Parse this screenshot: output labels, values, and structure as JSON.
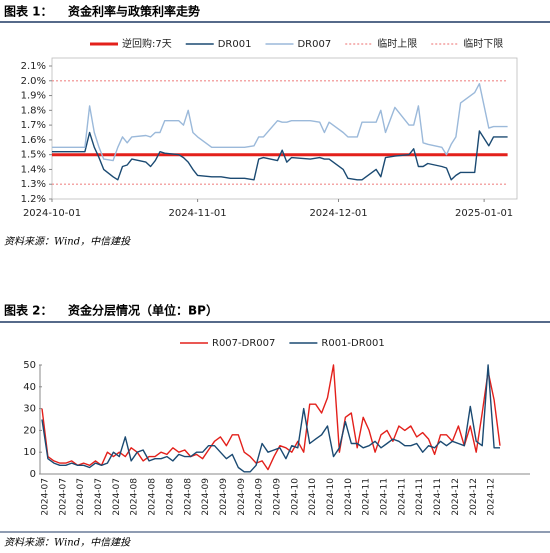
{
  "chart_data": [
    {
      "type": "line",
      "figure_label": "图表 1：",
      "title": "资金利率与政策利率走势",
      "source": "资料来源：Wind，中信建投",
      "x": [
        "2024-10-01",
        "2024-10-08",
        "2024-10-09",
        "2024-10-10",
        "2024-10-11",
        "2024-10-12",
        "2024-10-14",
        "2024-10-15",
        "2024-10-16",
        "2024-10-17",
        "2024-10-18",
        "2024-10-21",
        "2024-10-22",
        "2024-10-23",
        "2024-10-24",
        "2024-10-25",
        "2024-10-28",
        "2024-10-29",
        "2024-10-30",
        "2024-10-31",
        "2024-11-01",
        "2024-11-04",
        "2024-11-06",
        "2024-11-08",
        "2024-11-11",
        "2024-11-13",
        "2024-11-14",
        "2024-11-15",
        "2024-11-18",
        "2024-11-19",
        "2024-11-20",
        "2024-11-21",
        "2024-11-25",
        "2024-11-27",
        "2024-11-28",
        "2024-11-29",
        "2024-12-02",
        "2024-12-03",
        "2024-12-05",
        "2024-12-06",
        "2024-12-09",
        "2024-12-10",
        "2024-12-11",
        "2024-12-13",
        "2024-12-16",
        "2024-12-17",
        "2024-12-18",
        "2024-12-19",
        "2024-12-20",
        "2024-12-23",
        "2024-12-24",
        "2024-12-25",
        "2024-12-26",
        "2024-12-27",
        "2024-12-30",
        "2024-12-31",
        "2025-01-02",
        "2025-01-03",
        "2025-01-06"
      ],
      "xlim": [
        "2024-10-01",
        "2025-01-08"
      ],
      "xticks": [
        "2024-10-01",
        "2024-11-01",
        "2024-12-01",
        "2025-01-01"
      ],
      "ylim": [
        1.2,
        2.1
      ],
      "yticks": [
        {
          "value": 1.2,
          "label": "1.2%"
        },
        {
          "value": 1.3,
          "label": "1.3%"
        },
        {
          "value": 1.4,
          "label": "1.4%"
        },
        {
          "value": 1.5,
          "label": "1.5%"
        },
        {
          "value": 1.6,
          "label": "1.6%"
        },
        {
          "value": 1.7,
          "label": "1.7%"
        },
        {
          "value": 1.8,
          "label": "1.8%"
        },
        {
          "value": 1.9,
          "label": "1.9%"
        },
        {
          "value": 2.0,
          "label": "2.0%"
        },
        {
          "value": 2.1,
          "label": "2.1%"
        }
      ],
      "series": [
        {
          "name": "逆回购:7天",
          "color": "#e3201b",
          "line_style": "thick",
          "values": [
            1.5,
            1.5,
            1.5,
            1.5,
            1.5,
            1.5,
            1.5,
            1.5,
            1.5,
            1.5,
            1.5,
            1.5,
            1.5,
            1.5,
            1.5,
            1.5,
            1.5,
            1.5,
            1.5,
            1.5,
            1.5,
            1.5,
            1.5,
            1.5,
            1.5,
            1.5,
            1.5,
            1.5,
            1.5,
            1.5,
            1.5,
            1.5,
            1.5,
            1.5,
            1.5,
            1.5,
            1.5,
            1.5,
            1.5,
            1.5,
            1.5,
            1.5,
            1.5,
            1.5,
            1.5,
            1.5,
            1.5,
            1.5,
            1.5,
            1.5,
            1.5,
            1.5,
            1.5,
            1.5,
            1.5,
            1.5,
            1.5,
            1.5,
            1.5
          ]
        },
        {
          "name": "DR001",
          "color": "#1b4a72",
          "line_style": "solid",
          "values": [
            1.52,
            1.52,
            1.65,
            1.55,
            1.48,
            1.4,
            1.35,
            1.33,
            1.42,
            1.43,
            1.47,
            1.45,
            1.42,
            1.46,
            1.52,
            1.51,
            1.5,
            1.48,
            1.45,
            1.4,
            1.36,
            1.35,
            1.35,
            1.34,
            1.34,
            1.33,
            1.47,
            1.48,
            1.46,
            1.53,
            1.45,
            1.48,
            1.47,
            1.48,
            1.47,
            1.47,
            1.4,
            1.34,
            1.33,
            1.33,
            1.4,
            1.35,
            1.48,
            1.49,
            1.5,
            1.54,
            1.42,
            1.42,
            1.44,
            1.42,
            1.41,
            1.33,
            1.36,
            1.38,
            1.38,
            1.66,
            1.56,
            1.62,
            1.62
          ]
        },
        {
          "name": "DR007",
          "color": "#9bb9da",
          "line_style": "solid",
          "values": [
            1.55,
            1.55,
            1.83,
            1.65,
            1.55,
            1.47,
            1.46,
            1.55,
            1.62,
            1.58,
            1.62,
            1.63,
            1.62,
            1.65,
            1.65,
            1.73,
            1.73,
            1.7,
            1.8,
            1.65,
            1.62,
            1.55,
            1.55,
            1.55,
            1.55,
            1.56,
            1.62,
            1.62,
            1.73,
            1.72,
            1.72,
            1.73,
            1.73,
            1.72,
            1.65,
            1.72,
            1.65,
            1.62,
            1.62,
            1.72,
            1.72,
            1.8,
            1.65,
            1.82,
            1.7,
            1.7,
            1.83,
            1.58,
            1.57,
            1.55,
            1.5,
            1.57,
            1.62,
            1.85,
            1.92,
            1.98,
            1.68,
            1.69,
            1.69
          ]
        },
        {
          "name": "临时上限",
          "color": "#f08a8a",
          "line_style": "dotted",
          "values": [
            2.0,
            2.0,
            2.0,
            2.0,
            2.0,
            2.0,
            2.0,
            2.0,
            2.0,
            2.0,
            2.0,
            2.0,
            2.0,
            2.0,
            2.0,
            2.0,
            2.0,
            2.0,
            2.0,
            2.0,
            2.0,
            2.0,
            2.0,
            2.0,
            2.0,
            2.0,
            2.0,
            2.0,
            2.0,
            2.0,
            2.0,
            2.0,
            2.0,
            2.0,
            2.0,
            2.0,
            2.0,
            2.0,
            2.0,
            2.0,
            2.0,
            2.0,
            2.0,
            2.0,
            2.0,
            2.0,
            2.0,
            2.0,
            2.0,
            2.0,
            2.0,
            2.0,
            2.0,
            2.0,
            2.0,
            2.0,
            2.0,
            2.0,
            2.0
          ]
        },
        {
          "name": "临时下限",
          "color": "#f08a8a",
          "line_style": "dotted",
          "values": [
            1.3,
            1.3,
            1.3,
            1.3,
            1.3,
            1.3,
            1.3,
            1.3,
            1.3,
            1.3,
            1.3,
            1.3,
            1.3,
            1.3,
            1.3,
            1.3,
            1.3,
            1.3,
            1.3,
            1.3,
            1.3,
            1.3,
            1.3,
            1.3,
            1.3,
            1.3,
            1.3,
            1.3,
            1.3,
            1.3,
            1.3,
            1.3,
            1.3,
            1.3,
            1.3,
            1.3,
            1.3,
            1.3,
            1.3,
            1.3,
            1.3,
            1.3,
            1.3,
            1.3,
            1.3,
            1.3,
            1.3,
            1.3,
            1.3,
            1.3,
            1.3,
            1.3,
            1.3,
            1.3,
            1.3,
            1.3,
            1.3,
            1.3,
            1.3
          ]
        }
      ]
    },
    {
      "type": "line",
      "figure_label": "图表 2：",
      "title": "资金分层情况（单位：BP）",
      "source": "资料来源：Wind，中信建投",
      "categories": [
        "2024-07",
        null,
        null,
        "2024-07",
        null,
        null,
        "2024-07",
        null,
        null,
        "2024-07",
        null,
        null,
        "2024-07",
        null,
        null,
        "2024-08",
        null,
        null,
        "2024-08",
        null,
        null,
        "2024-08",
        null,
        null,
        "2024-08",
        null,
        null,
        "2024-09",
        null,
        null,
        "2024-09",
        null,
        null,
        "2024-09",
        null,
        null,
        "2024-09",
        null,
        null,
        "2024-09",
        null,
        null,
        "2024-10",
        null,
        null,
        "2024-10",
        null,
        null,
        "2024-10",
        null,
        null,
        "2024-10",
        null,
        null,
        "2024-11",
        null,
        null,
        "2024-11",
        null,
        null,
        "2024-11",
        null,
        null,
        "2024-11",
        null,
        null,
        "2024-11",
        null,
        null,
        "2024-12",
        null,
        null,
        "2024-12",
        null,
        null,
        "2024-12",
        null,
        null
      ],
      "ylim": [
        0,
        50
      ],
      "yticks": [
        0,
        10,
        20,
        30,
        40,
        50
      ],
      "series": [
        {
          "name": "R007-DR007",
          "color": "#e3201b",
          "values": [
            30,
            8,
            6,
            5,
            5,
            6,
            4,
            5,
            4,
            6,
            4,
            10,
            8,
            10,
            8,
            12,
            10,
            6,
            8,
            8,
            10,
            9,
            12,
            10,
            11,
            8,
            9,
            7,
            11,
            15,
            17,
            13,
            18,
            18,
            10,
            8,
            5,
            6,
            2,
            8,
            13,
            12,
            10,
            15,
            10,
            32,
            32,
            28,
            35,
            50,
            10,
            26,
            28,
            12,
            26,
            20,
            10,
            18,
            20,
            15,
            22,
            20,
            22,
            17,
            19,
            16,
            9,
            18,
            18,
            15,
            22,
            13,
            22,
            10,
            28,
            47,
            34,
            13
          ]
        },
        {
          "name": "R001-DR001",
          "color": "#1b4a72",
          "values": [
            25,
            7,
            5,
            4,
            4,
            5,
            4,
            4,
            3,
            5,
            4,
            5,
            10,
            8,
            17,
            6,
            10,
            11,
            6,
            7,
            7,
            8,
            6,
            9,
            8,
            8,
            10,
            10,
            13,
            13,
            10,
            7,
            9,
            3,
            1,
            1,
            4,
            14,
            10,
            11,
            12,
            7,
            13,
            12,
            30,
            14,
            16,
            18,
            22,
            8,
            12,
            24,
            14,
            14,
            12,
            13,
            15,
            12,
            14,
            16,
            15,
            13,
            13,
            14,
            10,
            13,
            12,
            15,
            13,
            15,
            14,
            13,
            31,
            15,
            13,
            50,
            12,
            12
          ]
        }
      ]
    }
  ]
}
